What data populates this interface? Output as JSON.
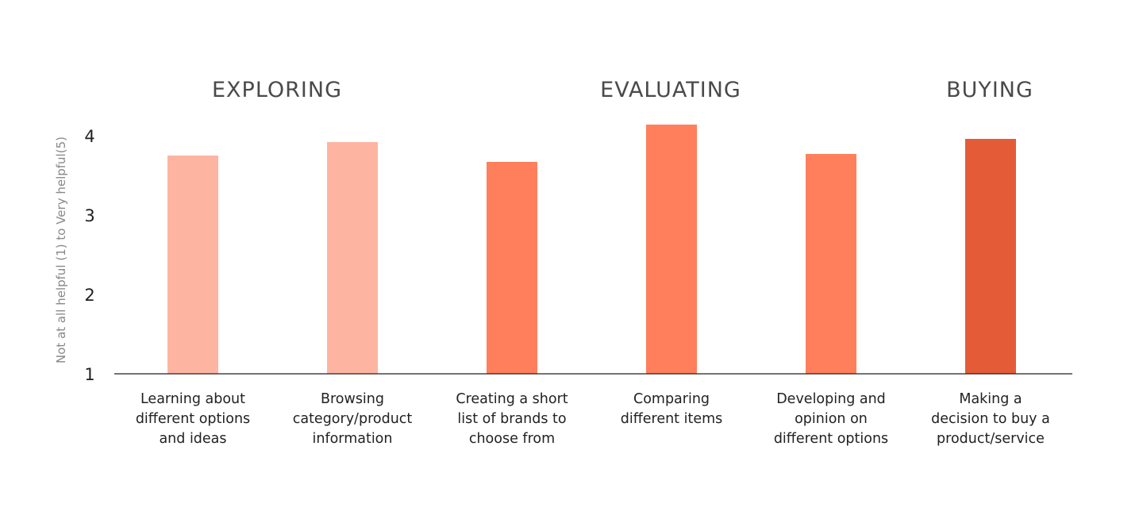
{
  "chart_data": {
    "type": "bar",
    "title": "",
    "xlabel": "",
    "ylabel": "Not at all helpful (1) to Very helpful(5)",
    "ylim": [
      1,
      4.15
    ],
    "yticks": [
      1,
      2,
      3,
      4
    ],
    "grid": false,
    "phases": [
      {
        "label": "EXPLORING",
        "categories": [
          0,
          1
        ]
      },
      {
        "label": "EVALUATING",
        "categories": [
          2,
          3,
          4
        ]
      },
      {
        "label": "BUYING",
        "categories": [
          5
        ]
      }
    ],
    "categories": [
      [
        "Learning about",
        "different options",
        "and ideas"
      ],
      [
        "Browsing",
        "category/product",
        "information"
      ],
      [
        "Creating a short",
        "list of brands to",
        "choose from"
      ],
      [
        "Comparing",
        "different items"
      ],
      [
        "Developing and",
        "opinion on",
        "different options"
      ],
      [
        "Making a",
        "decision to buy a",
        "product/service"
      ]
    ],
    "values": [
      3.75,
      3.92,
      3.67,
      4.14,
      3.77,
      3.96
    ],
    "colors": [
      "#fdb5a2",
      "#fdb5a2",
      "#ff7f5c",
      "#ff7f5c",
      "#ff7f5c",
      "#e45c37"
    ]
  }
}
